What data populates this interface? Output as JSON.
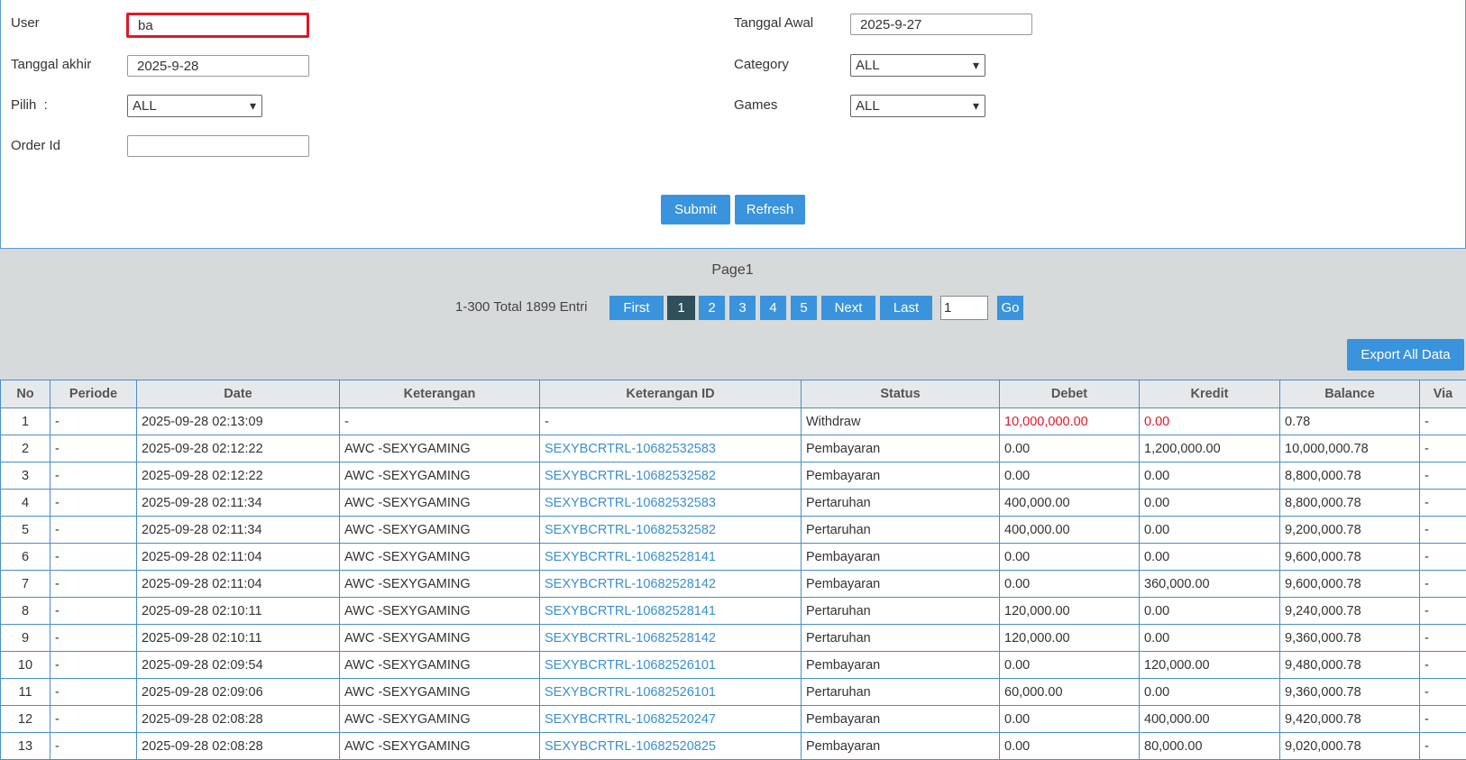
{
  "form": {
    "user_label": "User",
    "user_value": "ba",
    "tanggal_awal_label": "Tanggal Awal",
    "tanggal_awal_value": "2025-9-27",
    "tanggal_akhir_label": "Tanggal akhir",
    "tanggal_akhir_value": "2025-9-28",
    "category_label": "Category",
    "category_value": "ALL",
    "pilih_label": "Pilih  :",
    "pilih_value": "ALL",
    "games_label": "Games",
    "games_value": "ALL",
    "order_id_label": "Order Id",
    "submit": "Submit",
    "refresh": "Refresh"
  },
  "pagination": {
    "title": "Page1",
    "entries": "1-300 Total 1899 Entri",
    "buttons": [
      "First",
      "1",
      "2",
      "3",
      "4",
      "5",
      "Next",
      "Last"
    ],
    "page_input": "1",
    "go": "Go"
  },
  "export": "Export All Data",
  "table": {
    "columns": [
      "No",
      "Periode",
      "Date",
      "Keterangan",
      "Keterangan ID",
      "Status",
      "Debet",
      "Kredit",
      "Balance",
      "Via"
    ],
    "rows": [
      [
        "1",
        "-",
        "2025-09-28 02:13:09",
        "-",
        "-",
        "Withdraw",
        "10,000,000.00",
        "0.00",
        "0.78",
        "-"
      ],
      [
        "2",
        "-",
        "2025-09-28 02:12:22",
        "AWC -SEXYGAMING",
        "SEXYBCRTRL-10682532583",
        "Pembayaran",
        "0.00",
        "1,200,000.00",
        "10,000,000.78",
        "-"
      ],
      [
        "3",
        "-",
        "2025-09-28 02:12:22",
        "AWC -SEXYGAMING",
        "SEXYBCRTRL-10682532582",
        "Pembayaran",
        "0.00",
        "0.00",
        "8,800,000.78",
        "-"
      ],
      [
        "4",
        "-",
        "2025-09-28 02:11:34",
        "AWC -SEXYGAMING",
        "SEXYBCRTRL-10682532583",
        "Pertaruhan",
        "400,000.00",
        "0.00",
        "8,800,000.78",
        "-"
      ],
      [
        "5",
        "-",
        "2025-09-28 02:11:34",
        "AWC -SEXYGAMING",
        "SEXYBCRTRL-10682532582",
        "Pertaruhan",
        "400,000.00",
        "0.00",
        "9,200,000.78",
        "-"
      ],
      [
        "6",
        "-",
        "2025-09-28 02:11:04",
        "AWC -SEXYGAMING",
        "SEXYBCRTRL-10682528141",
        "Pembayaran",
        "0.00",
        "0.00",
        "9,600,000.78",
        "-"
      ],
      [
        "7",
        "-",
        "2025-09-28 02:11:04",
        "AWC -SEXYGAMING",
        "SEXYBCRTRL-10682528142",
        "Pembayaran",
        "0.00",
        "360,000.00",
        "9,600,000.78",
        "-"
      ],
      [
        "8",
        "-",
        "2025-09-28 02:10:11",
        "AWC -SEXYGAMING",
        "SEXYBCRTRL-10682528141",
        "Pertaruhan",
        "120,000.00",
        "0.00",
        "9,240,000.78",
        "-"
      ],
      [
        "9",
        "-",
        "2025-09-28 02:10:11",
        "AWC -SEXYGAMING",
        "SEXYBCRTRL-10682528142",
        "Pertaruhan",
        "120,000.00",
        "0.00",
        "9,360,000.78",
        "-"
      ],
      [
        "10",
        "-",
        "2025-09-28 02:09:54",
        "AWC -SEXYGAMING",
        "SEXYBCRTRL-10682526101",
        "Pembayaran",
        "0.00",
        "120,000.00",
        "9,480,000.78",
        "-"
      ],
      [
        "11",
        "-",
        "2025-09-28 02:09:06",
        "AWC -SEXYGAMING",
        "SEXYBCRTRL-10682526101",
        "Pertaruhan",
        "60,000.00",
        "0.00",
        "9,360,000.78",
        "-"
      ],
      [
        "12",
        "-",
        "2025-09-28 02:08:28",
        "AWC -SEXYGAMING",
        "SEXYBCRTRL-10682520247",
        "Pembayaran",
        "0.00",
        "400,000.00",
        "9,420,000.78",
        "-"
      ],
      [
        "13",
        "-",
        "2025-09-28 02:08:28",
        "AWC -SEXYGAMING",
        "SEXYBCRTRL-10682520825",
        "Pembayaran",
        "0.00",
        "80,000.00",
        "9,020,000.78",
        "-"
      ]
    ]
  }
}
